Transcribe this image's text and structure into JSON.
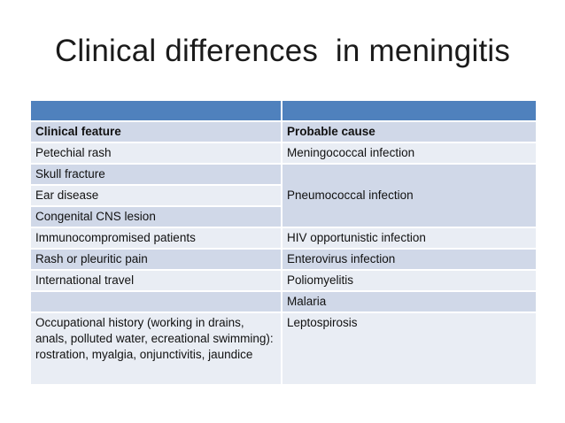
{
  "slide": {
    "title": "Clinical differences  in meningitis"
  },
  "table": {
    "header": [
      "",
      ""
    ],
    "columns": [
      "Clinical feature",
      "Probable cause"
    ],
    "rows": [
      {
        "feature": "Petechial rash",
        "cause": "Meningococcal infection"
      },
      {
        "feature": "Skull fracture",
        "cause": "Pneumococcal infection"
      },
      {
        "feature": "Ear disease",
        "cause": ""
      },
      {
        "feature": "Congenital CNS lesion",
        "cause": ""
      },
      {
        "feature": "Immunocompromised patients",
        "cause": "HIV opportunistic infection"
      },
      {
        "feature": "Rash or pleuritic pain",
        "cause": "Enterovirus infection"
      },
      {
        "feature": "International travel",
        "cause": "Poliomyelitis"
      },
      {
        "feature": "",
        "cause": "Malaria"
      },
      {
        "feature": "Occupational history (working in drains, anals, polluted water, ecreational swimming): rostration, myalgia, onjunctivitis, jaundice",
        "cause": "Leptospirosis"
      }
    ]
  },
  "colors": {
    "header": "#4f81bd",
    "row_dark": "#d0d8e8",
    "row_light": "#e9edf4"
  }
}
